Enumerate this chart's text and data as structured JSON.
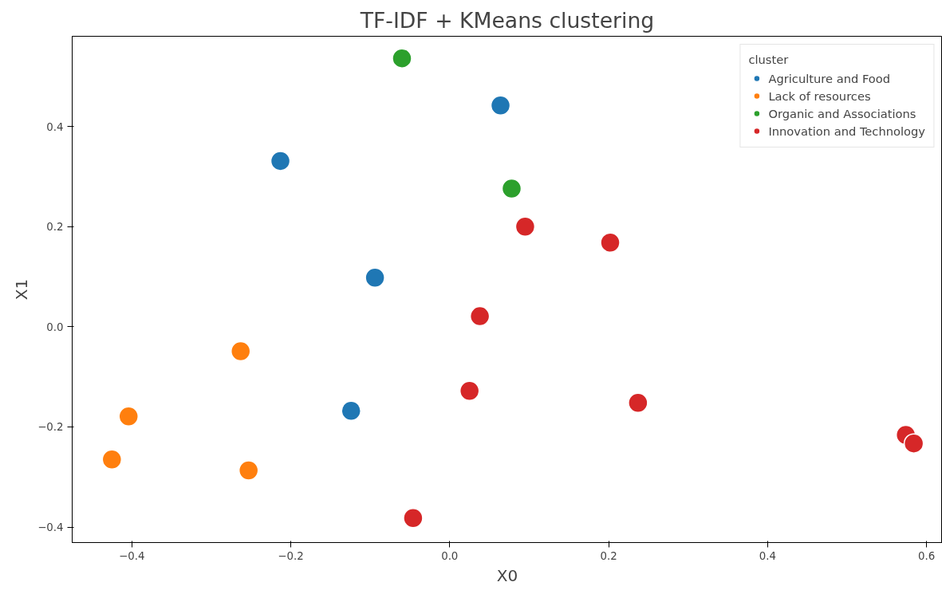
{
  "chart_data": {
    "type": "scatter",
    "title": "TF-IDF + KMeans clustering",
    "xlabel": "X0",
    "ylabel": "X1",
    "legend_title": "cluster",
    "legend": "top right",
    "marker": "circle",
    "grid": false,
    "xlim": [
      -0.475,
      0.62
    ],
    "xticks": [
      {
        "value": -0.4,
        "label": "−0.4"
      },
      {
        "value": -0.2,
        "label": "−0.2"
      },
      {
        "value": 0.0,
        "label": "0.0"
      },
      {
        "value": 0.2,
        "label": "0.2"
      },
      {
        "value": 0.4,
        "label": "0.4"
      },
      {
        "value": 0.6,
        "label": "0.6"
      }
    ],
    "ylim": [
      -0.431,
      0.58
    ],
    "yticks": [
      {
        "value": -0.4,
        "label": "−0.4"
      },
      {
        "value": -0.2,
        "label": "−0.2"
      },
      {
        "value": 0.0,
        "label": "0.0"
      },
      {
        "value": 0.2,
        "label": "0.2"
      },
      {
        "value": 0.4,
        "label": "0.4"
      }
    ],
    "series": [
      {
        "name": "Agriculture and Food",
        "color": "#1f77b4",
        "x": [
          0.064,
          -0.213,
          -0.094,
          -0.124
        ],
        "values": [
          0.442,
          0.331,
          0.098,
          -0.168
        ]
      },
      {
        "name": "Lack of resources",
        "color": "#ff7f0e",
        "x": [
          -0.263,
          -0.404,
          -0.425,
          -0.253
        ],
        "values": [
          -0.049,
          -0.179,
          -0.265,
          -0.287
        ]
      },
      {
        "name": "Organic and Associations",
        "color": "#2ca02c",
        "x": [
          -0.06,
          0.078
        ],
        "values": [
          0.536,
          0.276
        ]
      },
      {
        "name": "Innovation and Technology",
        "color": "#d62728",
        "x": [
          0.095,
          0.202,
          0.038,
          0.025,
          0.237,
          0.574,
          0.584,
          -0.046
        ],
        "values": [
          0.2,
          0.168,
          0.021,
          -0.128,
          -0.152,
          -0.216,
          -0.233,
          -0.382
        ]
      }
    ]
  }
}
